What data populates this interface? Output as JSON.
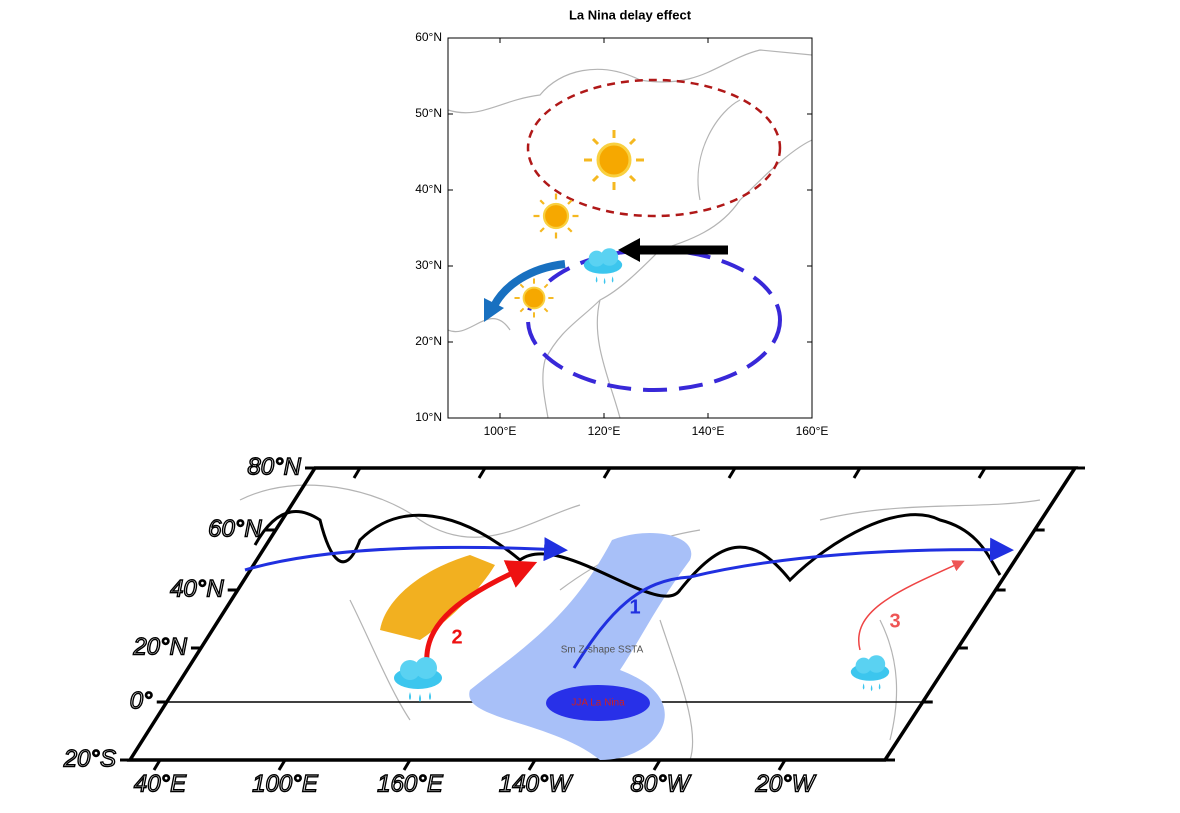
{
  "top_map": {
    "title": "La Nina delay effect",
    "lat_labels": [
      "60°N",
      "50°N",
      "40°N",
      "30°N",
      "20°N",
      "10°N"
    ],
    "lon_labels": [
      "100°E",
      "120°E",
      "140°E",
      "160°E"
    ]
  },
  "bottom_map": {
    "lat_labels": [
      "80°N",
      "60°N",
      "40°N",
      "20°N",
      "0°",
      "20°S"
    ],
    "lon_labels": [
      "40°E",
      "100°E",
      "160°E",
      "140°W",
      "80°W",
      "20°W"
    ],
    "arrow_labels": [
      "1",
      "2",
      "3"
    ],
    "ssta_label": "Sm Z-shape SSTA",
    "nina_label": "JJA La Nina"
  }
}
